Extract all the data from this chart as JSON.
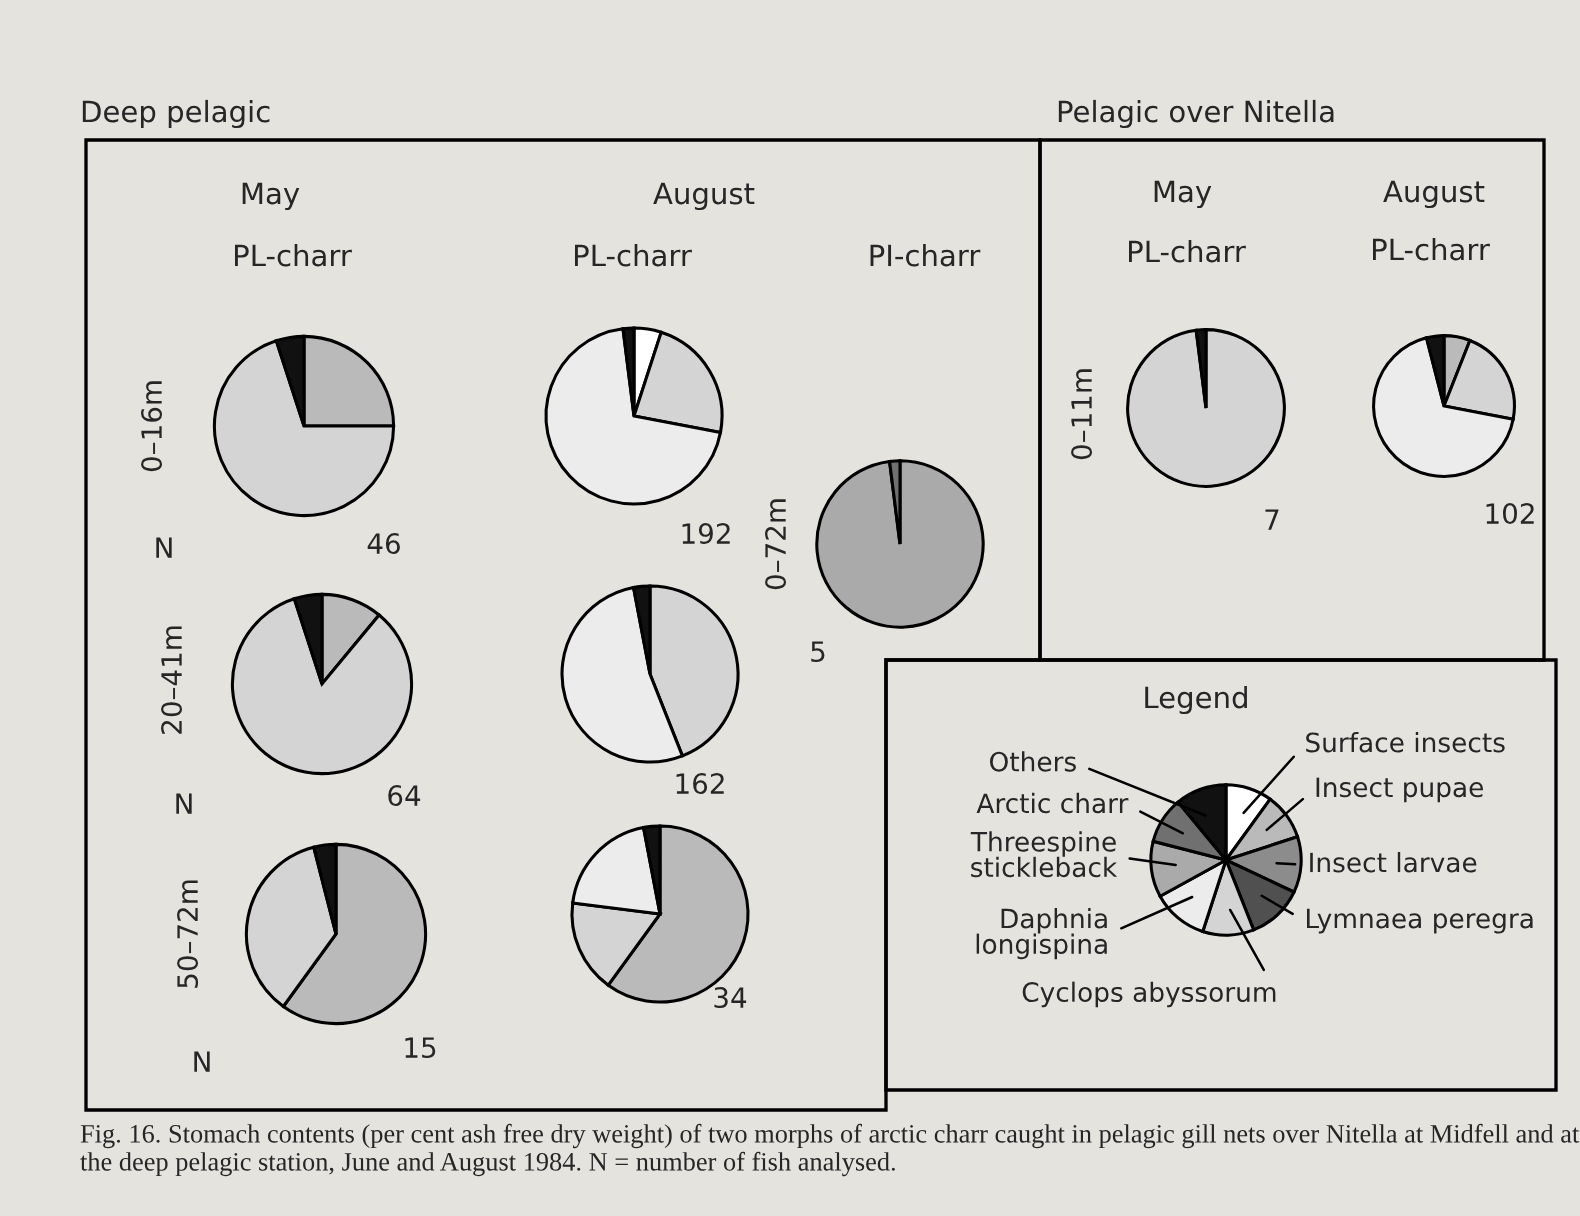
{
  "chart_data": [
    {
      "type": "pie",
      "title": "May",
      "subtitle": "PL-charr",
      "ylabel": "0–16m",
      "categories": [
        null,
        null,
        null
      ],
      "values": [
        25,
        70,
        5
      ],
      "colors": [
        "#bababa",
        "#d4d4d4",
        "#111111"
      ],
      "annotations": [
        "Deep pelagic",
        "N",
        "46",
        "Fig. 16. Stomach contents (per cent ash free dry weight) of two morphs of arctic charr caught in pelagic gill nets over Nitella at Midfell and at the deep pelagic station, June and August 1984. N = number of fish analysed."
      ]
    },
    {
      "type": "pie",
      "title": "August",
      "subtitle": "PL-charr",
      "categories": [
        null,
        null,
        null,
        null
      ],
      "values": [
        5,
        23,
        70,
        2
      ],
      "colors": [
        "#ffffff",
        "#d4d4d4",
        "#ececec",
        "#111111"
      ],
      "annotations": [
        "192"
      ]
    },
    {
      "type": "pie",
      "title": "May",
      "subtitle": "PL-charr",
      "ylabel": "0–11m",
      "categories": [
        null,
        null
      ],
      "values": [
        98,
        2
      ],
      "colors": [
        "#d4d4d4",
        "#111111"
      ],
      "annotations": [
        "Pelagic over Nitella",
        "7"
      ]
    },
    {
      "type": "pie",
      "title": "August",
      "subtitle": "PL-charr",
      "categories": [
        null,
        null,
        null,
        null
      ],
      "values": [
        6,
        22,
        68,
        4
      ],
      "colors": [
        "#bababa",
        "#d4d4d4",
        "#ececec",
        "#111111"
      ],
      "annotations": [
        "102"
      ]
    },
    {
      "type": "pie",
      "subtitle": "PI-charr",
      "ylabel": "0–72m",
      "categories": [
        null,
        null
      ],
      "values": [
        98,
        2
      ],
      "colors": [
        "#aaaaaa",
        "#707070"
      ],
      "annotations": [
        "5"
      ]
    },
    {
      "type": "pie",
      "ylabel": "20–41m",
      "categories": [
        null,
        null,
        null
      ],
      "values": [
        11,
        84,
        5
      ],
      "colors": [
        "#bababa",
        "#d4d4d4",
        "#111111"
      ],
      "annotations": [
        "N",
        "64"
      ]
    },
    {
      "type": "pie",
      "categories": [
        null,
        null,
        null
      ],
      "values": [
        44,
        53,
        3
      ],
      "colors": [
        "#d4d4d4",
        "#ececec",
        "#111111"
      ],
      "annotations": [
        "162"
      ]
    },
    {
      "type": "pie",
      "title": "Legend",
      "categories": [
        "Surface insects",
        "Insect pupae",
        "Insect larvae",
        "Lymnaea peregra",
        "Cyclops abyssorum",
        "Daphnia longispina",
        "Threespine stickleback",
        "Arctic charr",
        "Others"
      ],
      "values": [
        10,
        10,
        12,
        12,
        11,
        12,
        12,
        10,
        11
      ],
      "colors": [
        "#ffffff",
        "#bababa",
        "#8c8c8c",
        "#505050",
        "#d4d4d4",
        "#ececec",
        "#aaaaaa",
        "#707070",
        "#111111"
      ]
    },
    {
      "type": "pie",
      "ylabel": "50–72m",
      "categories": [
        null,
        null,
        null
      ],
      "values": [
        60,
        36,
        4
      ],
      "colors": [
        "#bababa",
        "#d4d4d4",
        "#111111"
      ],
      "annotations": [
        "N",
        "15"
      ]
    },
    {
      "type": "pie",
      "categories": [
        null,
        null,
        null,
        null
      ],
      "values": [
        60,
        17,
        20,
        3
      ],
      "colors": [
        "#bababa",
        "#d4d4d4",
        "#ececec",
        "#111111"
      ],
      "annotations": [
        "34"
      ]
    }
  ]
}
